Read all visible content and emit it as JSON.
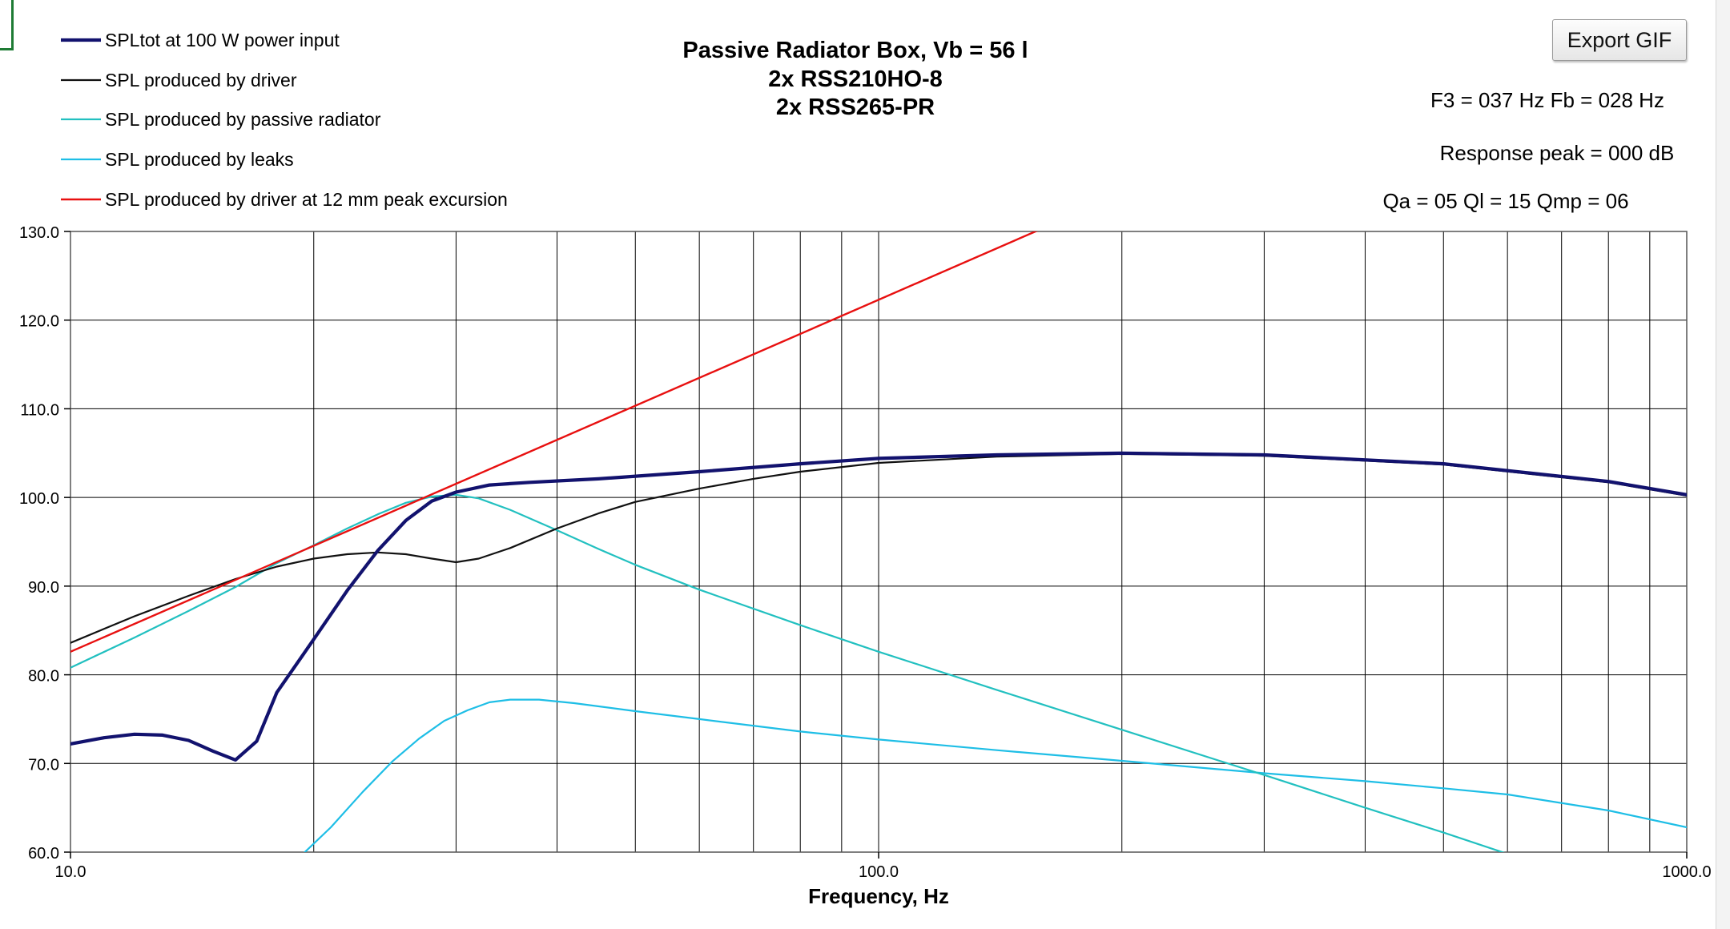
{
  "buttons": {
    "export_label": "Export GIF"
  },
  "chart_data": {
    "type": "line",
    "title_lines": [
      "Passive Radiator Box, Vb = 56 l",
      "2x RSS210HO-8",
      "2x RSS265-PR"
    ],
    "info_lines": [
      "F3 = 037 Hz  Fb = 028 Hz",
      "Response peak = 000 dB",
      "Qa = 05  Ql = 15  Qmp = 06"
    ],
    "xlabel": "Frequency, Hz",
    "ylabel": "",
    "x_scale": "log",
    "xlim": [
      10,
      1000
    ],
    "ylim": [
      60,
      130
    ],
    "x_ticks": [
      10,
      100,
      1000
    ],
    "x_tick_labels": [
      "10.0",
      "100.0",
      "1000.0"
    ],
    "y_ticks": [
      60,
      70,
      80,
      90,
      100,
      110,
      120,
      130
    ],
    "y_tick_labels": [
      "60.0",
      "70.0",
      "80.0",
      "90.0",
      "100.0",
      "110.0",
      "120.0",
      "130.0"
    ],
    "grid": true,
    "legend_position": "top-left",
    "series": [
      {
        "name": "SPLtot at 100 W power input",
        "color": "#12126e",
        "points": [
          [
            10,
            72.2
          ],
          [
            11,
            72.9
          ],
          [
            12,
            73.3
          ],
          [
            13,
            73.2
          ],
          [
            14,
            72.6
          ],
          [
            15,
            71.4
          ],
          [
            16,
            70.4
          ],
          [
            17,
            72.5
          ],
          [
            18,
            78
          ],
          [
            20,
            84
          ],
          [
            22,
            89.5
          ],
          [
            24,
            94
          ],
          [
            26,
            97.4
          ],
          [
            28,
            99.6
          ],
          [
            30,
            100.6
          ],
          [
            33,
            101.4
          ],
          [
            37,
            101.7
          ],
          [
            45,
            102.1
          ],
          [
            60,
            102.9
          ],
          [
            80,
            103.8
          ],
          [
            100,
            104.4
          ],
          [
            140,
            104.8
          ],
          [
            200,
            105
          ],
          [
            300,
            104.8
          ],
          [
            500,
            103.8
          ],
          [
            800,
            101.8
          ],
          [
            1000,
            100.3
          ]
        ]
      },
      {
        "name": "SPL produced by driver",
        "color": "#111111",
        "points": [
          [
            10,
            83.6
          ],
          [
            12,
            86.6
          ],
          [
            14,
            88.9
          ],
          [
            16,
            90.8
          ],
          [
            18,
            92.2
          ],
          [
            20,
            93.1
          ],
          [
            22,
            93.6
          ],
          [
            24,
            93.8
          ],
          [
            26,
            93.6
          ],
          [
            28,
            93.1
          ],
          [
            30,
            92.7
          ],
          [
            32,
            93.1
          ],
          [
            35,
            94.3
          ],
          [
            40,
            96.5
          ],
          [
            45,
            98.2
          ],
          [
            50,
            99.5
          ],
          [
            60,
            101
          ],
          [
            70,
            102.1
          ],
          [
            80,
            102.9
          ],
          [
            100,
            103.9
          ],
          [
            140,
            104.6
          ],
          [
            200,
            104.9
          ],
          [
            300,
            104.7
          ],
          [
            500,
            103.7
          ],
          [
            800,
            101.7
          ],
          [
            1000,
            100.2
          ]
        ]
      },
      {
        "name": "SPL produced by passive radiator",
        "color": "#22c0c0",
        "points": [
          [
            10,
            80.8
          ],
          [
            12,
            84.2
          ],
          [
            14,
            87.2
          ],
          [
            16,
            89.9
          ],
          [
            18,
            92.6
          ],
          [
            20,
            94.6
          ],
          [
            22,
            96.5
          ],
          [
            24,
            98.1
          ],
          [
            26,
            99.4
          ],
          [
            28,
            100.1
          ],
          [
            30,
            100.3
          ],
          [
            32,
            99.9
          ],
          [
            35,
            98.6
          ],
          [
            40,
            96.3
          ],
          [
            45,
            94.2
          ],
          [
            50,
            92.4
          ],
          [
            60,
            89.6
          ],
          [
            80,
            85.6
          ],
          [
            100,
            82.6
          ],
          [
            140,
            78.3
          ],
          [
            200,
            73.8
          ],
          [
            300,
            68.7
          ],
          [
            400,
            65
          ],
          [
            500,
            62.2
          ],
          [
            600,
            59.8
          ]
        ]
      },
      {
        "name": "SPL produced by leaks",
        "color": "#1ebee6",
        "points": [
          [
            19.5,
            60
          ],
          [
            21,
            62.8
          ],
          [
            23,
            66.8
          ],
          [
            25,
            70.2
          ],
          [
            27,
            72.8
          ],
          [
            29,
            74.8
          ],
          [
            31,
            76
          ],
          [
            33,
            76.9
          ],
          [
            35,
            77.2
          ],
          [
            38,
            77.2
          ],
          [
            42,
            76.8
          ],
          [
            50,
            75.9
          ],
          [
            60,
            75
          ],
          [
            80,
            73.6
          ],
          [
            100,
            72.7
          ],
          [
            140,
            71.5
          ],
          [
            200,
            70.3
          ],
          [
            300,
            68.9
          ],
          [
            400,
            68
          ],
          [
            500,
            67.2
          ],
          [
            600,
            66.5
          ],
          [
            800,
            64.7
          ],
          [
            1000,
            62.8
          ]
        ]
      },
      {
        "name": "SPL produced by driver at 12 mm peak excursion",
        "color": "#e81010",
        "points": [
          [
            10,
            82.6
          ],
          [
            160,
            130.4
          ]
        ]
      }
    ]
  }
}
